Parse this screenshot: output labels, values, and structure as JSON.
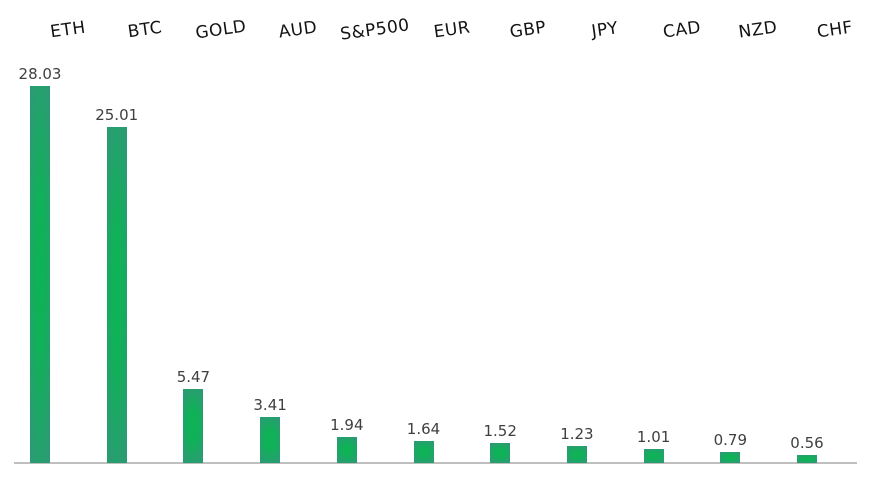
{
  "chart_data": {
    "type": "bar",
    "title": "",
    "xlabel": "",
    "ylabel": "",
    "categories": [
      "ETH",
      "BTC",
      "GOLD",
      "AUD",
      "S&P500",
      "EUR",
      "GBP",
      "JPY",
      "CAD",
      "NZD",
      "CHF"
    ],
    "values": [
      28.03,
      25.01,
      5.47,
      3.41,
      1.94,
      1.64,
      1.52,
      1.23,
      1.01,
      0.79,
      0.56
    ],
    "value_labels": [
      "28.03",
      "25.01",
      "5.47",
      "3.41",
      "1.94",
      "1.64",
      "1.52",
      "1.23",
      "1.01",
      "0.79",
      "0.56"
    ],
    "ylim": [
      0,
      30
    ],
    "grid": false,
    "legend_position": "none",
    "category_labels_position": "top",
    "colors": {
      "bar_center": "#0fb257",
      "bar_edge": "#2a9c72",
      "value_label": "#3f3f3f",
      "category_label": "#131313",
      "axis_line": "#bfbfbf",
      "background": "#ffffff"
    }
  }
}
